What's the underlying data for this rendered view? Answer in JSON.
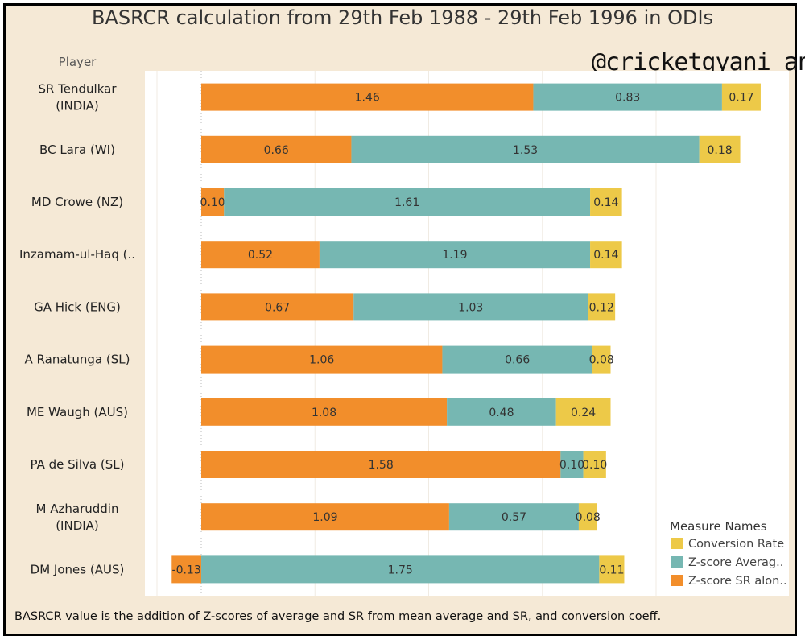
{
  "watermark": "@cricketgyani_an",
  "footer": {
    "part1": "BASRCR value is the",
    "part2": " addition ",
    "part3": "of ",
    "part4": "Z-scores",
    "part5": " of average and SR from mean average and SR, and conversion coeff."
  },
  "colors": {
    "conversion": "#edc948",
    "zavg": "#76b7b2",
    "zsr": "#f28e2b"
  },
  "chart_data": {
    "type": "bar",
    "orientation": "horizontal",
    "stacked": true,
    "title": "BASRCR calculation from 29th Feb 1988 - 29th Feb 1996 in ODIs",
    "ylabel": "Player",
    "categories": [
      [
        "SR Tendulkar",
        "(INDIA)"
      ],
      [
        "BC Lara (WI)"
      ],
      [
        "MD Crowe (NZ)"
      ],
      [
        "Inzamam-ul-Haq (.."
      ],
      [
        "GA Hick (ENG)"
      ],
      [
        "A Ranatunga (SL)"
      ],
      [
        "ME Waugh (AUS)"
      ],
      [
        "PA de Silva (SL)"
      ],
      [
        "M Azharuddin",
        "(INDIA)"
      ],
      [
        "DM Jones (AUS)"
      ]
    ],
    "series": [
      {
        "name": "Z-score SR alon..",
        "key": "zsr",
        "values": [
          1.46,
          0.66,
          0.1,
          0.52,
          0.67,
          1.06,
          1.08,
          1.58,
          1.09,
          -0.13
        ]
      },
      {
        "name": "Z-score Averag..",
        "key": "zavg",
        "values": [
          0.83,
          1.53,
          1.61,
          1.19,
          1.03,
          0.66,
          0.48,
          0.1,
          0.57,
          1.75
        ]
      },
      {
        "name": "Conversion Rate",
        "key": "conversion",
        "values": [
          0.17,
          0.18,
          0.14,
          0.14,
          0.12,
          0.08,
          0.24,
          0.1,
          0.08,
          0.11
        ]
      }
    ],
    "legend": {
      "title": "Measure Names",
      "position": "bottom-right",
      "entries": [
        "Conversion Rate",
        "Z-score Averag..",
        "Z-score SR alon.."
      ]
    },
    "xlim": [
      -0.13,
      2.46
    ],
    "grid": true
  }
}
